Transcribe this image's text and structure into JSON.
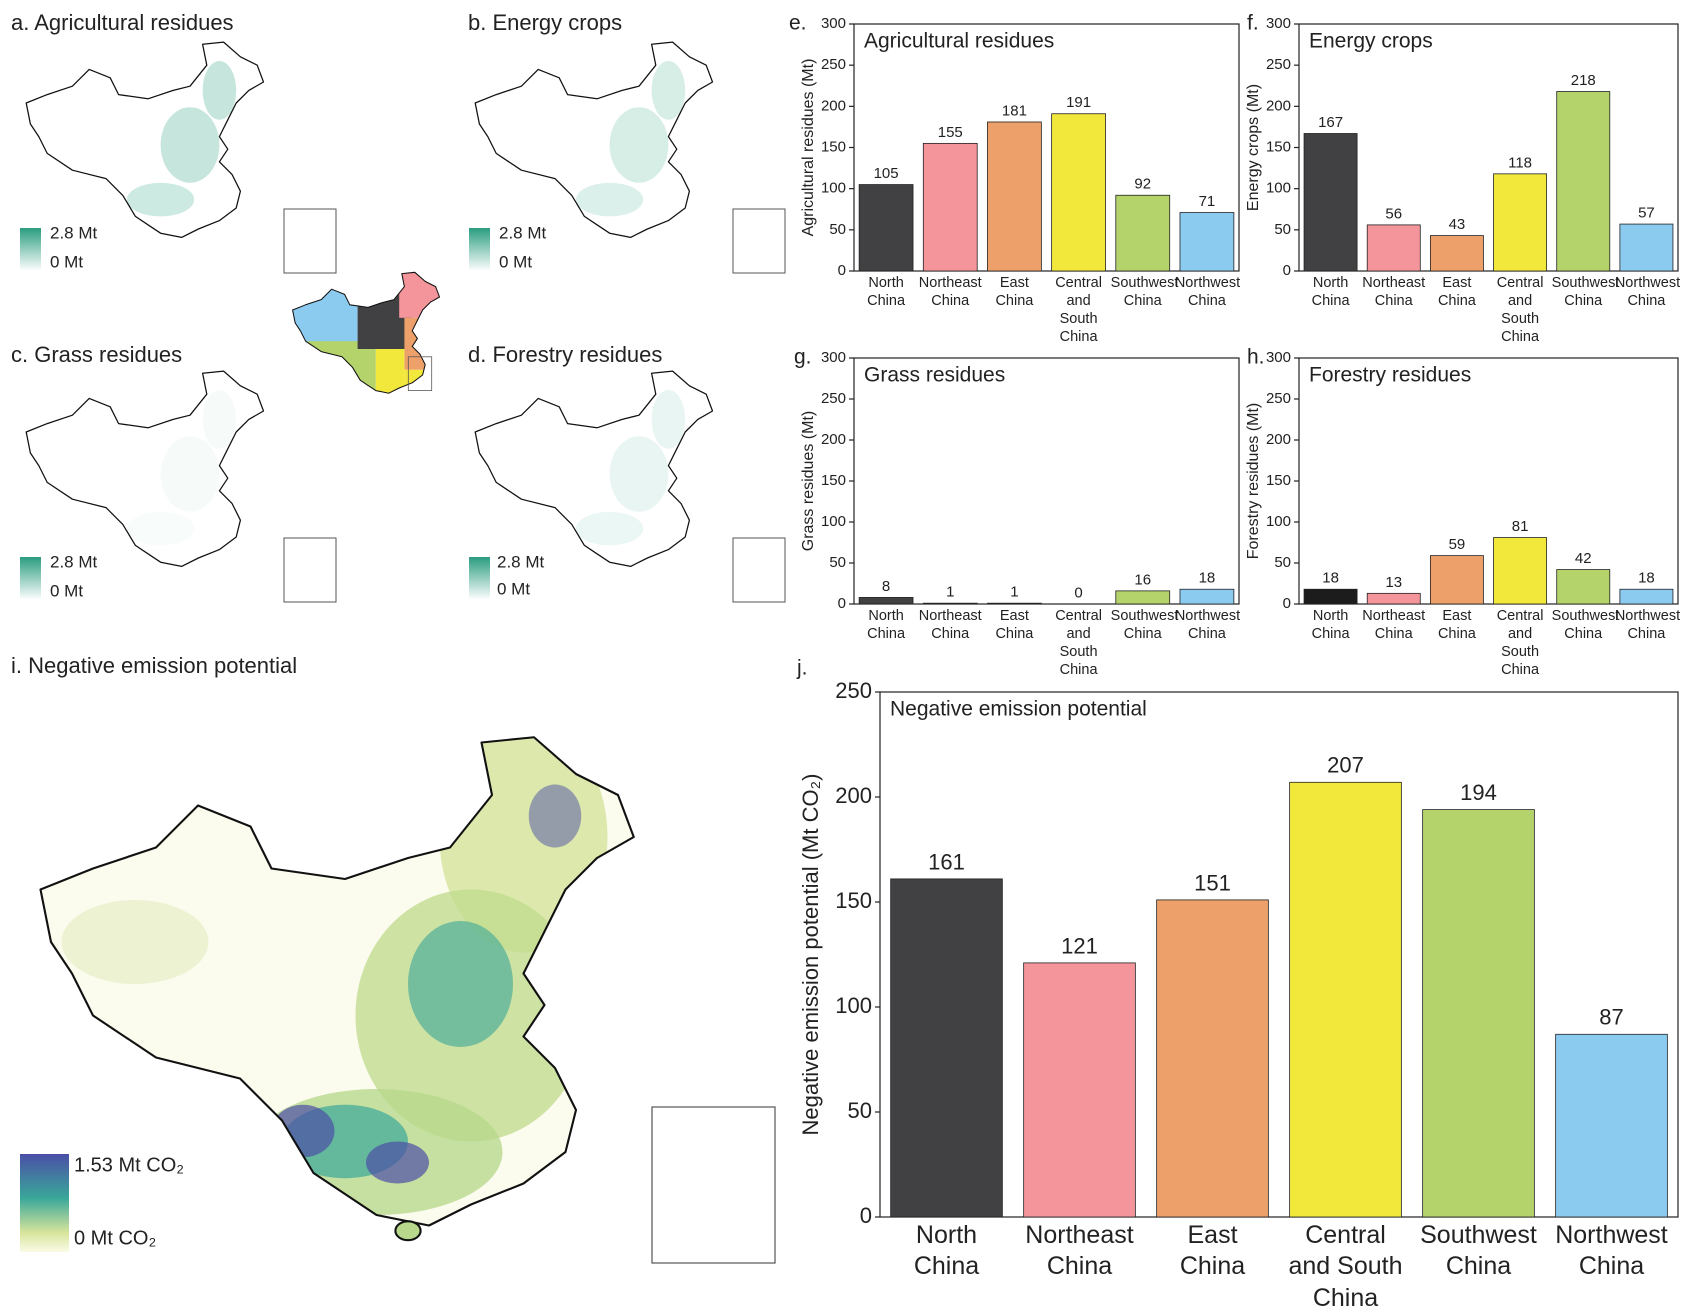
{
  "maps": [
    {
      "title": "a. Agricultural residues",
      "legend": [
        "2.8 Mt",
        "0 Mt"
      ]
    },
    {
      "title": "b. Energy crops",
      "legend": [
        "2.8 Mt",
        "0 Mt"
      ]
    },
    {
      "title": "c. Grass residues",
      "legend": [
        "2.8 Mt",
        "0 Mt"
      ]
    },
    {
      "title": "d. Forestry residues",
      "legend": [
        "2.8 Mt",
        "0 Mt"
      ]
    },
    {
      "title": "i. Negative emission potential",
      "legend": [
        "1.53 Mt CO₂",
        "0 Mt CO₂"
      ]
    }
  ],
  "chart_data": [
    {
      "type": "bar",
      "panel": "e.",
      "title": "Agricultural residues",
      "ylabel": "Agricultural residues (Mt)",
      "categories": [
        "North\nChina",
        "Northeast\nChina",
        "East\nChina",
        "Central\nand\nSouth\nChina",
        "Southwest\nChina",
        "Northwest\nChina"
      ],
      "values": [
        105,
        155,
        181,
        191,
        92,
        71
      ],
      "colors": [
        "#414042",
        "#f4959b",
        "#eea06a",
        "#f2e83c",
        "#b4d36a",
        "#8ccbf0"
      ],
      "ylim": [
        0,
        300
      ],
      "yticks": [
        0,
        50,
        100,
        150,
        200,
        250,
        300
      ]
    },
    {
      "type": "bar",
      "panel": "f.",
      "title": "Energy crops",
      "ylabel": "Energy crops (Mt)",
      "categories": [
        "North\nChina",
        "Northeast\nChina",
        "East\nChina",
        "Central\nand\nSouth\nChina",
        "Southwest\nChina",
        "Northwest\nChina"
      ],
      "values": [
        167,
        56,
        43,
        118,
        218,
        57
      ],
      "colors": [
        "#414042",
        "#f4959b",
        "#eea06a",
        "#f2e83c",
        "#b4d36a",
        "#8ccbf0"
      ],
      "ylim": [
        0,
        300
      ],
      "yticks": [
        0,
        50,
        100,
        150,
        200,
        250,
        300
      ]
    },
    {
      "type": "bar",
      "panel": "g.",
      "title": "Grass residues",
      "ylabel": "Grass residues (Mt)",
      "categories": [
        "North\nChina",
        "Northeast\nChina",
        "East\nChina",
        "Central\nand\nSouth\nChina",
        "Southwest\nChina",
        "Northwest\nChina"
      ],
      "values": [
        8,
        1,
        1,
        0,
        16,
        18
      ],
      "colors": [
        "#414042",
        "#f4959b",
        "#eea06a",
        "#f2e83c",
        "#b4d36a",
        "#8ccbf0"
      ],
      "ylim": [
        0,
        300
      ],
      "yticks": [
        0,
        50,
        100,
        150,
        200,
        250,
        300
      ]
    },
    {
      "type": "bar",
      "panel": "h.",
      "title": "Forestry residues",
      "ylabel": "Forestry residues (Mt)",
      "categories": [
        "North\nChina",
        "Northeast\nChina",
        "East\nChina",
        "Central\nand\nSouth\nChina",
        "Southwest\nChina",
        "Northwest\nChina"
      ],
      "values": [
        18,
        13,
        59,
        81,
        42,
        18
      ],
      "colors": [
        "#1c1c1c",
        "#f4959b",
        "#eea06a",
        "#f2e83c",
        "#b4d36a",
        "#8ccbf0"
      ],
      "ylim": [
        0,
        300
      ],
      "yticks": [
        0,
        50,
        100,
        150,
        200,
        250,
        300
      ]
    },
    {
      "type": "bar",
      "panel": "j.",
      "title": "Negative emission potential",
      "ylabel": "Negative emission potential (Mt CO₂)",
      "categories": [
        "North\nChina",
        "Northeast\nChina",
        "East\nChina",
        "Central\nand South\nChina",
        "Southwest\nChina",
        "Northwest\nChina"
      ],
      "values": [
        161,
        121,
        151,
        207,
        194,
        87
      ],
      "colors": [
        "#414042",
        "#f4959b",
        "#eea06a",
        "#f2e83c",
        "#b4d36a",
        "#8ccbf0"
      ],
      "ylim": [
        0,
        250
      ],
      "yticks": [
        0,
        50,
        100,
        150,
        200,
        250
      ]
    }
  ]
}
